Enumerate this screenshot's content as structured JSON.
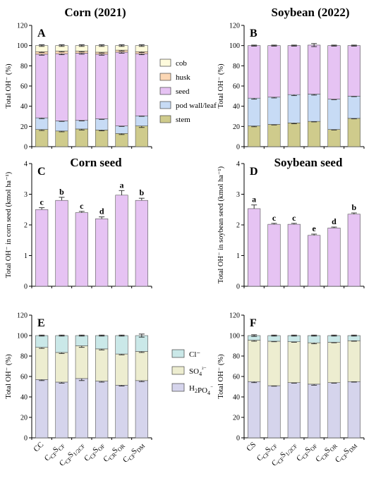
{
  "page_titles": {
    "left": "Corn (2021)",
    "right": "Soybean (2022)"
  },
  "colors": {
    "cob": "#fefbdc",
    "husk": "#fbd7b4",
    "seed": "#e6c3f3",
    "pod": "#c7dbf5",
    "stem": "#cfcb8c",
    "seedbar": "#e6c3f3",
    "cl": "#cae8e8",
    "so4": "#ededd0",
    "h2po4": "#d5d4ec"
  },
  "chart_data": [
    {
      "id": "A",
      "type": "bar",
      "stacked": true,
      "panel_label": "A",
      "ylabel": "Total OH⁻ (%)",
      "ylim": [
        0,
        120
      ],
      "yticks": [
        0,
        20,
        40,
        60,
        80,
        100,
        120
      ],
      "categories": [
        "CC",
        "CCFSCF",
        "CCFS1/2CF",
        "CCFSOF",
        "CCRSOR",
        "CCFSDM"
      ],
      "series": [
        {
          "name": "stem",
          "color_key": "stem",
          "values": [
            17,
            15.5,
            17.5,
            16.5,
            13,
            20.5
          ],
          "errors": [
            1,
            0.8,
            1,
            0.8,
            1,
            1.5
          ]
        },
        {
          "name": "pod wall/leaf",
          "color_key": "pod",
          "values": [
            11.5,
            10,
            8.5,
            11,
            7.5,
            10
          ],
          "errors": [
            0.8,
            0.5,
            0.5,
            0.5,
            0.5,
            0.5
          ]
        },
        {
          "name": "seed",
          "color_key": "seed",
          "values": [
            63,
            66.5,
            66.5,
            64,
            73,
            61.5
          ],
          "errors": [
            1,
            1,
            1,
            1,
            1,
            1
          ]
        },
        {
          "name": "husk",
          "color_key": "husk",
          "values": [
            2.5,
            2.5,
            2,
            2,
            2,
            2
          ],
          "errors": [
            0.8,
            0.8,
            0.8,
            0.8,
            0.8,
            0.8
          ]
        },
        {
          "name": "cob",
          "color_key": "cob",
          "values": [
            6,
            5.5,
            5.5,
            6.5,
            4.5,
            6
          ],
          "errors": [
            0.8,
            0.8,
            0.8,
            0.8,
            0.8,
            0.8
          ]
        }
      ],
      "legend": [
        {
          "label": "cob",
          "color_key": "cob"
        },
        {
          "label": "husk",
          "color_key": "husk"
        },
        {
          "label": "seed",
          "color_key": "seed"
        },
        {
          "label": "pod wall/leaf",
          "color_key": "pod"
        },
        {
          "label": "stem",
          "color_key": "stem"
        }
      ]
    },
    {
      "id": "B",
      "type": "bar",
      "stacked": true,
      "panel_label": "B",
      "ylabel": "Total OH⁻ (%)",
      "ylim": [
        0,
        120
      ],
      "yticks": [
        0,
        20,
        40,
        60,
        80,
        100,
        120
      ],
      "categories": [
        "CS",
        "CCFSCF",
        "CCFS1/2CF",
        "CCFSOF",
        "CCRSOR",
        "CCFSDM"
      ],
      "series": [
        {
          "name": "stem",
          "color_key": "stem",
          "values": [
            20.5,
            22,
            23.5,
            25,
            17,
            28
          ],
          "errors": [
            0.8,
            0.5,
            0.8,
            0.5,
            0.5,
            0.5
          ]
        },
        {
          "name": "pod wall/leaf",
          "color_key": "pod",
          "values": [
            27.5,
            27,
            28,
            27,
            30,
            22
          ],
          "errors": [
            1,
            0.8,
            1,
            1,
            0.5,
            0.5
          ]
        },
        {
          "name": "seed",
          "color_key": "seed",
          "values": [
            52,
            51,
            48.5,
            48.5,
            53,
            50
          ],
          "errors": [
            0.5,
            0.5,
            0.5,
            1.5,
            0.5,
            0.5
          ]
        }
      ]
    },
    {
      "id": "C",
      "type": "bar",
      "panel_label": "C",
      "title": "Corn seed",
      "ylabel": "Total OH⁻ in corn seed (kmol ha⁻¹)",
      "ylim": [
        0,
        4
      ],
      "yticks": [
        0,
        1,
        2,
        3,
        4
      ],
      "categories": [
        "CC",
        "CCFSCF",
        "CCFS1/2CF",
        "CCFSOF",
        "CCRSOR",
        "CCFSDM"
      ],
      "values": [
        2.5,
        2.8,
        2.4,
        2.2,
        2.97,
        2.8
      ],
      "errors": [
        0.06,
        0.1,
        0.04,
        0.06,
        0.15,
        0.07
      ],
      "significance": [
        "c",
        "b",
        "c",
        "d",
        "a",
        "b"
      ]
    },
    {
      "id": "D",
      "type": "bar",
      "panel_label": "D",
      "title": "Soybean seed",
      "ylabel": "Total OH⁻ in soybean seed (kmol ha⁻¹)",
      "ylim": [
        0,
        4
      ],
      "yticks": [
        0,
        1,
        2,
        3,
        4
      ],
      "categories": [
        "CS",
        "CCFSCF",
        "CCFS1/2CF",
        "CCFSOF",
        "CCRSOR",
        "CCFSDM"
      ],
      "values": [
        2.53,
        2.02,
        2.02,
        1.66,
        1.9,
        2.35
      ],
      "errors": [
        0.12,
        0.03,
        0.03,
        0.04,
        0.03,
        0.04
      ],
      "significance": [
        "a",
        "c",
        "c",
        "e",
        "d",
        "b"
      ]
    },
    {
      "id": "E",
      "type": "bar",
      "stacked": true,
      "panel_label": "E",
      "ylabel": "Total OH⁻ (%)",
      "ylim": [
        0,
        120
      ],
      "yticks": [
        0,
        20,
        40,
        60,
        80,
        100,
        120
      ],
      "categories": [
        "CC",
        "CCFSCF",
        "CCFS1/2CF",
        "CCFSOF",
        "CCRSOR",
        "CCFSDM"
      ],
      "series": [
        {
          "name": "H2PO4⁻",
          "color_key": "h2po4",
          "values": [
            57,
            54.5,
            58,
            55.5,
            51.5,
            56
          ],
          "errors": [
            1,
            1,
            2,
            1,
            0.8,
            1
          ]
        },
        {
          "name": "SO4²⁻",
          "color_key": "so4",
          "values": [
            31.5,
            29,
            32,
            31.5,
            30.5,
            28.5
          ],
          "errors": [
            1,
            1,
            1.5,
            1,
            0.8,
            1
          ]
        },
        {
          "name": "Cl⁻",
          "color_key": "cl",
          "values": [
            11.5,
            16.5,
            10,
            13,
            18,
            15.5
          ],
          "errors": [
            0.5,
            0.5,
            0.5,
            0.5,
            0.5,
            1.5
          ]
        }
      ],
      "legend": [
        {
          "label": "Cl⁻",
          "color_key": "cl"
        },
        {
          "label": "SO4²⁻",
          "color_key": "so4"
        },
        {
          "label": "H2PO4⁻",
          "color_key": "h2po4"
        }
      ]
    },
    {
      "id": "F",
      "type": "bar",
      "stacked": true,
      "panel_label": "F",
      "ylabel": "Total OH⁻ (%)",
      "ylim": [
        0,
        120
      ],
      "yticks": [
        0,
        20,
        40,
        60,
        80,
        100,
        120
      ],
      "categories": [
        "CS",
        "CCFSCF",
        "CCFS1/2CF",
        "CCFSOF",
        "CCRSOR",
        "CCFSDM"
      ],
      "series": [
        {
          "name": "H2PO4⁻",
          "color_key": "h2po4",
          "values": [
            55,
            51,
            54,
            52.5,
            54,
            55
          ],
          "errors": [
            1,
            0.5,
            0.5,
            1,
            0.5,
            0.5
          ]
        },
        {
          "name": "SO4²⁻",
          "color_key": "so4",
          "values": [
            40.5,
            43.5,
            40,
            40.5,
            39.5,
            40
          ],
          "errors": [
            1,
            0.5,
            0.5,
            1,
            0.5,
            0.5
          ]
        },
        {
          "name": "Cl⁻",
          "color_key": "cl",
          "values": [
            4.5,
            5.5,
            6,
            7,
            6.5,
            5
          ],
          "errors": [
            0.8,
            0.5,
            0.5,
            0.5,
            0.5,
            0.5
          ]
        }
      ]
    }
  ],
  "xlabels": {
    "left": [
      {
        "base": "CC",
        "sub1": "",
        "mid": "",
        "sub2": ""
      },
      {
        "base": "C",
        "sub1": "CF",
        "mid": "S",
        "sub2": "CF"
      },
      {
        "base": "C",
        "sub1": "CF",
        "mid": "S",
        "sub2": "1/2CF"
      },
      {
        "base": "C",
        "sub1": "CF",
        "mid": "S",
        "sub2": "OF"
      },
      {
        "base": "C",
        "sub1": "CR",
        "mid": "S",
        "sub2": "OR"
      },
      {
        "base": "C",
        "sub1": "CF",
        "mid": "S",
        "sub2": "DM"
      }
    ],
    "right": [
      {
        "base": "CS",
        "sub1": "",
        "mid": "",
        "sub2": ""
      },
      {
        "base": "C",
        "sub1": "CF",
        "mid": "S",
        "sub2": "CF"
      },
      {
        "base": "C",
        "sub1": "CF",
        "mid": "S",
        "sub2": "1/2CF"
      },
      {
        "base": "C",
        "sub1": "CF",
        "mid": "S",
        "sub2": "OF"
      },
      {
        "base": "C",
        "sub1": "CR",
        "mid": "S",
        "sub2": "OR"
      },
      {
        "base": "C",
        "sub1": "CF",
        "mid": "S",
        "sub2": "DM"
      }
    ]
  }
}
